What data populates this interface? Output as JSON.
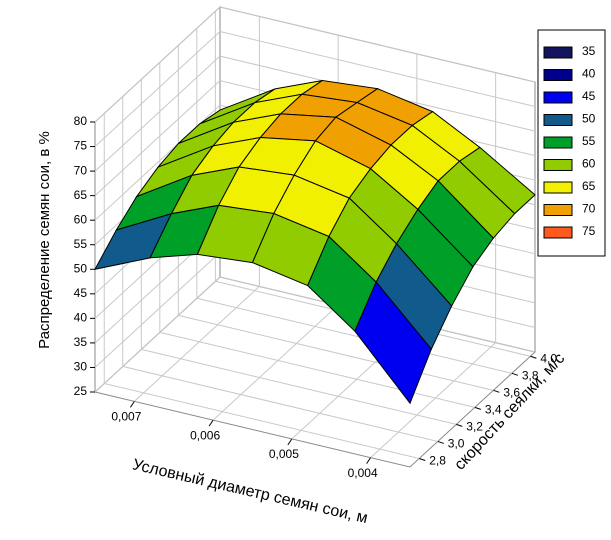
{
  "chart_data": {
    "type": "surface",
    "x_label": "Условный диаметр семян сои, м",
    "y_label": "скорость сеялки, м/с",
    "z_label": "Распределение семян сои, в %",
    "x": [
      0.0035,
      0.0042,
      0.0048,
      0.0055,
      0.0062,
      0.0068,
      0.0075
    ],
    "y": [
      2.7,
      2.93,
      3.15,
      3.38,
      3.6,
      3.83,
      4.05
    ],
    "z": [
      [
        38,
        50,
        57,
        59,
        58,
        55,
        50
      ],
      [
        45,
        56,
        63,
        65,
        64,
        60,
        54
      ],
      [
        50,
        60,
        67,
        69,
        68,
        64,
        57
      ],
      [
        54,
        63,
        69,
        72,
        70,
        66,
        59
      ],
      [
        56,
        65,
        70,
        73,
        71,
        67,
        60
      ],
      [
        57,
        65,
        70,
        72,
        71,
        67,
        60
      ],
      [
        57,
        64,
        69,
        71,
        70,
        66,
        59
      ]
    ],
    "xlim": [
      0.0035,
      0.0075
    ],
    "ylim": [
      2.7,
      4.05
    ],
    "zlim": [
      25,
      80
    ],
    "xticks": [
      {
        "value": 0.007,
        "label": "0,007"
      },
      {
        "value": 0.006,
        "label": "0,006"
      },
      {
        "value": 0.005,
        "label": "0,005"
      },
      {
        "value": 0.004,
        "label": "0,004"
      }
    ],
    "yticks": [
      {
        "value": 2.8,
        "label": "2,8"
      },
      {
        "value": 3.0,
        "label": "3,0"
      },
      {
        "value": 3.2,
        "label": "3,2"
      },
      {
        "value": 3.4,
        "label": "3,4"
      },
      {
        "value": 3.6,
        "label": "3,6"
      },
      {
        "value": 3.8,
        "label": "3,8"
      },
      {
        "value": 4.0,
        "label": "4,0"
      }
    ],
    "zticks": [
      25,
      30,
      35,
      40,
      45,
      50,
      55,
      60,
      65,
      70,
      75,
      80
    ],
    "grid": true,
    "legend": {
      "levels": [
        35,
        40,
        45,
        50,
        55,
        60,
        65,
        70,
        75
      ],
      "colors": [
        "#14145e",
        "#00008c",
        "#0000f0",
        "#105a8c",
        "#00a028",
        "#90cc00",
        "#f0f000",
        "#f0a000",
        "#ff5a1e"
      ]
    }
  }
}
